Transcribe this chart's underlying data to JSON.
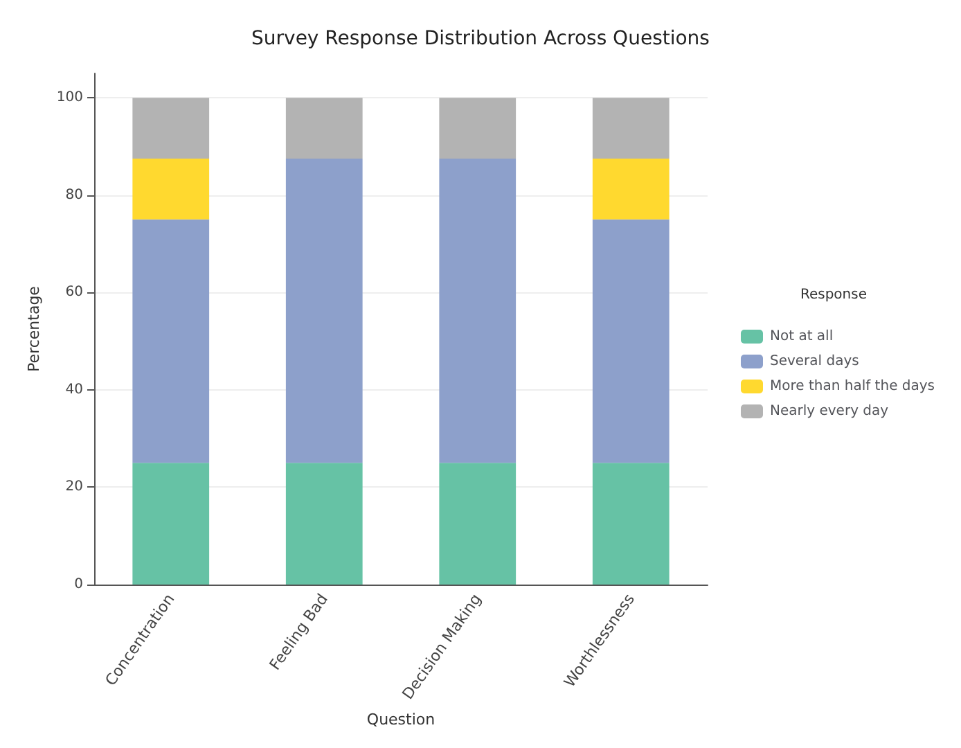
{
  "chart_data": {
    "type": "bar",
    "title": "Survey Response Distribution Across Questions",
    "xlabel": "Question",
    "ylabel": "Percentage",
    "legend_title": "Response",
    "categories": [
      "Concentration",
      "Feeling Bad",
      "Decision Making",
      "Worthlessness"
    ],
    "stacked": true,
    "series": [
      {
        "name": "Not at all",
        "color": "#66c2a5",
        "values": [
          25,
          25,
          25,
          25
        ]
      },
      {
        "name": "Several days",
        "color": "#8da0cb",
        "values": [
          50,
          62.5,
          62.5,
          50
        ]
      },
      {
        "name": "More than half the days",
        "color": "#ffd92f",
        "values": [
          12.5,
          0,
          0,
          12.5
        ]
      },
      {
        "name": "Nearly every day",
        "color": "#b3b3b3",
        "values": [
          12.5,
          12.5,
          12.5,
          12.5
        ]
      }
    ],
    "ylim": [
      0,
      105
    ],
    "yticks": [
      0,
      20,
      40,
      60,
      80,
      100
    ],
    "grid": "y",
    "legend": "right"
  }
}
